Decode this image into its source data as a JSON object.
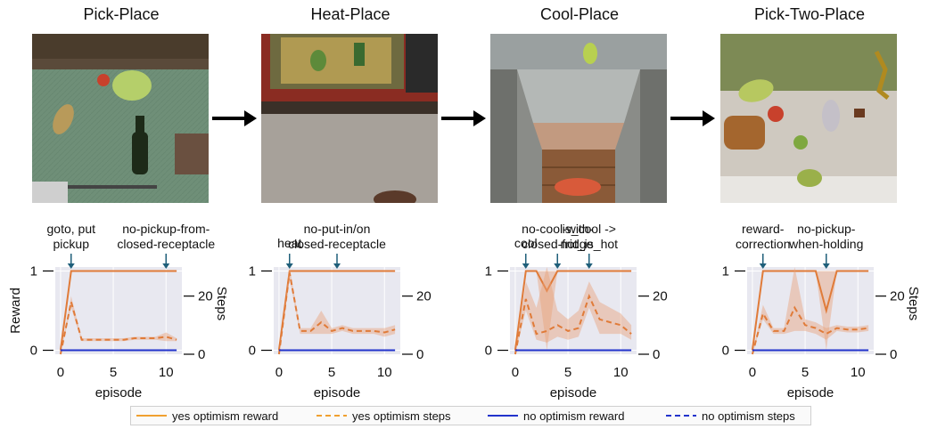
{
  "colors": {
    "yes": "#e07b39",
    "yes_band": "#e8a27a",
    "no": "#2233cc",
    "plot_bg": "#e8e8f0",
    "annot": "#1f5f7a"
  },
  "flow_arrow_icon": "right-arrow-icon",
  "legend": [
    {
      "label": "yes optimism reward",
      "style": "solid",
      "color": "#f0a030"
    },
    {
      "label": "yes optimism steps",
      "style": "dashed",
      "color": "#f0a030"
    },
    {
      "label": "no optimism reward",
      "style": "solid",
      "color": "#2233cc"
    },
    {
      "label": "no optimism steps",
      "style": "dashed",
      "color": "#2233cc"
    }
  ],
  "chart_data": [
    {
      "type": "line",
      "title": "Pick-Place",
      "xlabel": "episode",
      "ylabel": "Reward",
      "y2label": "Steps",
      "x": [
        0,
        1,
        2,
        3,
        4,
        5,
        6,
        7,
        8,
        9,
        10,
        11
      ],
      "xlim": [
        -0.5,
        11.5
      ],
      "ylim": [
        -0.05,
        1.05
      ],
      "y2lim": [
        0,
        30
      ],
      "xticks": [
        0,
        5,
        10
      ],
      "yticks": [
        0,
        1
      ],
      "y2ticks": [
        0,
        20
      ],
      "series": [
        {
          "name": "yes optimism reward",
          "axis": "left",
          "style": "solid",
          "values": [
            0,
            1,
            1,
            1,
            1,
            1,
            1,
            1,
            1,
            1,
            1,
            1
          ]
        },
        {
          "name": "yes optimism steps",
          "axis": "right",
          "style": "dashed",
          "values": [
            0,
            18,
            5,
            5,
            5,
            5,
            5,
            5.5,
            5.5,
            5.5,
            6,
            5
          ],
          "band_low": [
            0,
            16,
            4.5,
            4.5,
            4.5,
            4.5,
            4.5,
            5,
            5,
            5,
            4.5,
            4.5
          ],
          "band_high": [
            0,
            20,
            5.5,
            5.5,
            5.5,
            5.5,
            5.5,
            6,
            6,
            6,
            7.5,
            5.5
          ]
        },
        {
          "name": "no optimism reward",
          "axis": "left",
          "style": "solid",
          "values": [
            0,
            0,
            0,
            0,
            0,
            0,
            0,
            0,
            0,
            0,
            0,
            0
          ]
        }
      ],
      "annotations": [
        {
          "text": "goto, put\npickup",
          "x": 1
        },
        {
          "text": "no-pickup-from-\nclosed-receptacle",
          "x": 10
        }
      ]
    },
    {
      "type": "line",
      "title": "Heat-Place",
      "xlabel": "episode",
      "ylabel": "",
      "y2label": "",
      "x": [
        0,
        1,
        2,
        3,
        4,
        5,
        6,
        7,
        8,
        9,
        10,
        11
      ],
      "xlim": [
        -0.5,
        11.5
      ],
      "ylim": [
        -0.05,
        1.05
      ],
      "y2lim": [
        0,
        30
      ],
      "xticks": [
        0,
        5,
        10
      ],
      "yticks": [
        0,
        1
      ],
      "y2ticks": [
        0,
        20
      ],
      "y2ticklabels": [
        "0",
        "20"
      ],
      "series": [
        {
          "name": "yes optimism reward",
          "axis": "left",
          "style": "solid",
          "values": [
            0,
            1,
            1,
            1,
            1,
            1,
            1,
            1,
            1,
            1,
            1,
            1
          ]
        },
        {
          "name": "yes optimism steps",
          "axis": "right",
          "style": "dashed",
          "values": [
            0,
            28,
            8,
            8,
            11,
            8,
            9,
            8,
            8,
            8,
            7.5,
            8.5
          ],
          "band_low": [
            0,
            26,
            7,
            7,
            7,
            7,
            8,
            7,
            7,
            7,
            6,
            7
          ],
          "band_high": [
            0,
            30,
            9,
            9,
            15,
            9,
            10,
            9,
            9,
            9,
            9,
            10
          ]
        },
        {
          "name": "no optimism reward",
          "axis": "left",
          "style": "solid",
          "values": [
            0,
            0,
            0,
            0,
            0,
            0,
            0,
            0,
            0,
            0,
            0,
            0
          ]
        }
      ],
      "annotations": [
        {
          "text": "heat",
          "x": 1
        },
        {
          "text": "no-put-in/on\nclosed-receptacle",
          "x": 5.5
        }
      ]
    },
    {
      "type": "line",
      "title": "Cool-Place",
      "xlabel": "episode",
      "ylabel": "",
      "y2label": "",
      "x": [
        0,
        1,
        2,
        3,
        4,
        5,
        6,
        7,
        8,
        9,
        10,
        11
      ],
      "xlim": [
        -0.5,
        11.5
      ],
      "ylim": [
        -0.05,
        1.05
      ],
      "y2lim": [
        0,
        30
      ],
      "xticks": [
        0,
        5,
        10
      ],
      "yticks": [
        0,
        1
      ],
      "y2ticks": [
        0,
        20
      ],
      "series": [
        {
          "name": "yes optimism reward",
          "axis": "left",
          "style": "solid",
          "values": [
            0,
            1,
            1,
            0.75,
            1,
            1,
            1,
            1,
            1,
            1,
            1,
            1
          ],
          "band_low": [
            0,
            1,
            1,
            0,
            1,
            1,
            1,
            1,
            1,
            1,
            1,
            1
          ],
          "band_high": [
            0,
            1,
            1,
            1,
            1,
            1,
            1,
            1,
            1,
            1,
            1,
            1
          ]
        },
        {
          "name": "yes optimism steps",
          "axis": "right",
          "style": "dashed",
          "values": [
            0,
            19,
            7,
            8,
            10,
            8,
            9,
            20,
            12,
            11,
            10,
            7
          ],
          "band_low": [
            0,
            15,
            5,
            4,
            6,
            5,
            6,
            16,
            7,
            7,
            7,
            5
          ],
          "band_high": [
            0,
            25,
            16,
            30,
            15,
            12,
            15,
            25,
            18,
            16,
            14,
            10
          ]
        },
        {
          "name": "no optimism reward",
          "axis": "left",
          "style": "solid",
          "values": [
            0,
            0,
            0,
            0,
            0,
            0,
            0,
            0,
            0,
            0,
            0,
            0
          ]
        }
      ],
      "annotations": [
        {
          "text": "cool",
          "x": 1
        },
        {
          "text": "no-cool-with-\nclosed-fridge",
          "x": 4
        },
        {
          "text": "is_cool ->\nnot_is_hot",
          "x": 7
        }
      ]
    },
    {
      "type": "line",
      "title": "Pick-Two-Place",
      "xlabel": "episode",
      "ylabel": "",
      "y2label": "Steps",
      "x": [
        0,
        1,
        2,
        3,
        4,
        5,
        6,
        7,
        8,
        9,
        10,
        11
      ],
      "xlim": [
        -0.5,
        11.5
      ],
      "ylim": [
        -0.05,
        1.05
      ],
      "y2lim": [
        0,
        30
      ],
      "xticks": [
        0,
        5,
        10
      ],
      "yticks": [
        0,
        1
      ],
      "y2ticks": [
        0,
        20
      ],
      "series": [
        {
          "name": "yes optimism reward",
          "axis": "left",
          "style": "solid",
          "values": [
            0,
            1,
            1,
            1,
            1,
            1,
            1,
            0.5,
            1,
            1,
            1,
            1
          ],
          "band_low": [
            0,
            1,
            1,
            1,
            1,
            1,
            1,
            0,
            1,
            1,
            1,
            1
          ],
          "band_high": [
            0,
            1,
            1,
            1,
            1,
            1,
            1,
            1,
            1,
            1,
            1,
            1
          ]
        },
        {
          "name": "yes optimism steps",
          "axis": "right",
          "style": "dashed",
          "values": [
            0,
            14,
            8,
            8,
            16,
            10,
            9,
            7,
            9,
            8.5,
            8.5,
            9
          ],
          "band_low": [
            0,
            12,
            7,
            7,
            8,
            8,
            7,
            5,
            8,
            7.5,
            7.5,
            8
          ],
          "band_high": [
            0,
            17,
            9,
            9,
            30,
            12,
            11,
            9,
            10,
            9.5,
            9.5,
            10
          ]
        },
        {
          "name": "no optimism reward",
          "axis": "left",
          "style": "solid",
          "values": [
            0,
            0,
            0,
            0,
            0,
            0,
            0,
            0,
            0,
            0,
            0,
            0
          ]
        }
      ],
      "annotations": [
        {
          "text": "reward-\ncorrection",
          "x": 1
        },
        {
          "text": "no-pickup-\nwhen-holding",
          "x": 7
        }
      ]
    }
  ]
}
